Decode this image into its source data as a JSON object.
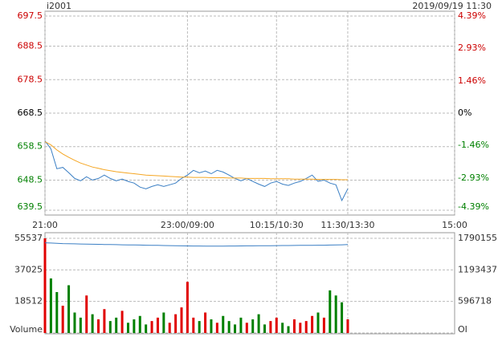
{
  "chart_data": [
    {
      "type": "line",
      "title": "i2001",
      "subtitle": "2019/09/19 11:30",
      "x": [
        0,
        5,
        10,
        15,
        20,
        25,
        30,
        35,
        40,
        45,
        50,
        55,
        60,
        65,
        70,
        75,
        80,
        85,
        90,
        95,
        100,
        105,
        110,
        115,
        120,
        125,
        130,
        135,
        140,
        145,
        150,
        155,
        160,
        165,
        170,
        175,
        180,
        185,
        190,
        195,
        200,
        205,
        210,
        215,
        220,
        225,
        230,
        235,
        240,
        245,
        250,
        255
      ],
      "xlim": [
        0,
        345
      ],
      "xticks": [
        {
          "value": 0,
          "label": "21:00"
        },
        {
          "value": 120,
          "label": "23:00/09:00"
        },
        {
          "value": 195,
          "label": "10:15/10:30"
        },
        {
          "value": 255,
          "label": "11:30/13:30"
        },
        {
          "value": 345,
          "label": "15:00"
        }
      ],
      "ylim": [
        639.5,
        697.5
      ],
      "yticks": [
        639.5,
        648.5,
        658.5,
        668.5,
        678.5,
        688.5,
        697.5
      ],
      "y2lim": [
        -4.39,
        4.39
      ],
      "y2ticks": [
        {
          "value": -4.39,
          "label": "-4.39%"
        },
        {
          "value": -2.93,
          "label": "-2.93%"
        },
        {
          "value": -1.46,
          "label": "-1.46%"
        },
        {
          "value": 0,
          "label": "0%"
        },
        {
          "value": 1.46,
          "label": "1.46%"
        },
        {
          "value": 2.93,
          "label": "2.93%"
        },
        {
          "value": 4.39,
          "label": "4.39%"
        }
      ],
      "up_color": "#cc0000",
      "down_color": "#008000",
      "flat_color": "#000000",
      "grid": true,
      "series": [
        {
          "color": "#3b7fc4",
          "values": [
            660.2,
            657.8,
            651.9,
            652.3,
            650.7,
            649.0,
            648.3,
            649.5,
            648.5,
            649.0,
            650.0,
            649.0,
            648.3,
            648.8,
            648.1,
            647.6,
            646.4,
            645.9,
            646.6,
            647.1,
            646.6,
            647.1,
            647.6,
            649.0,
            650.0,
            651.4,
            650.7,
            651.2,
            650.4,
            651.4,
            650.9,
            650.0,
            649.0,
            648.3,
            649.0,
            648.1,
            647.3,
            646.6,
            647.6,
            648.1,
            647.3,
            646.9,
            647.6,
            648.1,
            649.0,
            650.0,
            648.1,
            648.5,
            647.6,
            647.1,
            642.4,
            645.9
          ]
        },
        {
          "color": "#f5a623",
          "values": [
            660.0,
            659.0,
            657.5,
            656.3,
            655.3,
            654.4,
            653.6,
            653.0,
            652.4,
            652.0,
            651.6,
            651.3,
            651.0,
            650.8,
            650.6,
            650.4,
            650.2,
            650.0,
            649.9,
            649.8,
            649.7,
            649.6,
            649.5,
            649.4,
            649.4,
            649.3,
            649.3,
            649.3,
            649.2,
            649.2,
            649.2,
            649.1,
            649.1,
            649.1,
            649.0,
            649.0,
            649.0,
            649.0,
            648.9,
            648.9,
            648.9,
            648.9,
            648.8,
            648.8,
            648.8,
            648.8,
            648.7,
            648.7,
            648.7,
            648.7,
            648.6,
            648.6
          ]
        }
      ]
    },
    {
      "type": "bar",
      "x": [
        0,
        5,
        10,
        15,
        20,
        25,
        30,
        35,
        40,
        45,
        50,
        55,
        60,
        65,
        70,
        75,
        80,
        85,
        90,
        95,
        100,
        105,
        110,
        115,
        120,
        125,
        130,
        135,
        140,
        145,
        150,
        155,
        160,
        165,
        170,
        175,
        180,
        185,
        190,
        195,
        200,
        205,
        210,
        215,
        220,
        225,
        230,
        235,
        240,
        245,
        250,
        255
      ],
      "xlim": [
        0,
        345
      ],
      "xticks": [
        120,
        195,
        255
      ],
      "ylim": [
        0,
        55537
      ],
      "yticks": [
        {
          "value": 0,
          "label": "Volume"
        },
        18512,
        37025,
        55537
      ],
      "y2lim": [
        0,
        1790155
      ],
      "y2ticks": [
        {
          "value": 0,
          "label": "OI"
        },
        596718,
        1193437,
        1790155
      ],
      "up_color": "#e00000",
      "down_color": "#008000",
      "grid": true,
      "values": [
        55537,
        32000,
        24000,
        16000,
        28000,
        12000,
        9000,
        22000,
        11000,
        8000,
        14000,
        7000,
        9000,
        13000,
        6000,
        8000,
        10000,
        5000,
        7000,
        9000,
        12000,
        6000,
        11000,
        15000,
        30000,
        9000,
        7000,
        12000,
        8000,
        6000,
        10000,
        7000,
        5000,
        9000,
        6000,
        8000,
        11000,
        5000,
        7000,
        9000,
        6000,
        4000,
        8000,
        6000,
        7000,
        10000,
        12000,
        9000,
        25000,
        22000,
        18000,
        8000
      ],
      "series": [
        {
          "axis": "y2",
          "color": "#3b7fc4",
          "values": [
            1705000,
            1700000,
            1695000,
            1690000,
            1688000,
            1685000,
            1682000,
            1680000,
            1678000,
            1676000,
            1674000,
            1672000,
            1670000,
            1668000,
            1666000,
            1664000,
            1662000,
            1660000,
            1658000,
            1656000,
            1654000,
            1652000,
            1650000,
            1648000,
            1646000,
            1645000,
            1644000,
            1643000,
            1642000,
            1642000,
            1643000,
            1644000,
            1645000,
            1646000,
            1647000,
            1648000,
            1649000,
            1650000,
            1651000,
            1652000,
            1653000,
            1654000,
            1655000,
            1656000,
            1657000,
            1658000,
            1659000,
            1660000,
            1662000,
            1664000,
            1668000,
            1672000
          ]
        }
      ]
    }
  ]
}
